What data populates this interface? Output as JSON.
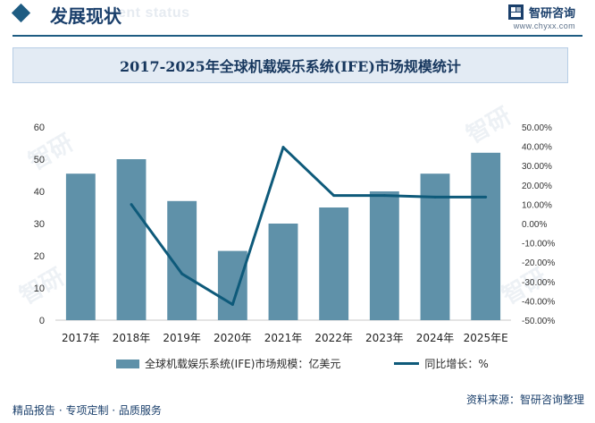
{
  "header": {
    "section_title": "发展现状",
    "section_ghost": "ent status",
    "brand_name": "智研咨询",
    "brand_url": "www.chyxx.com"
  },
  "chart_data": {
    "type": "bar+line",
    "title": "2017-2025年全球机载娱乐系统(IFE)市场规模统计",
    "categories": [
      "2017年",
      "2018年",
      "2019年",
      "2020年",
      "2021年",
      "2022年",
      "2023年",
      "2024年",
      "2025年E"
    ],
    "bar_series": {
      "name": "全球机载娱乐系统(IFE)市场规模：亿美元",
      "color": "#5f91a9",
      "values": [
        45.5,
        50,
        37,
        21.5,
        30,
        35,
        40,
        45.5,
        52
      ]
    },
    "line_series": {
      "name": "同比增长：%",
      "color": "#0e5a7a",
      "values": [
        null,
        9.9,
        -26,
        -41.9,
        39.5,
        14.5,
        14.5,
        13.7,
        13.7
      ]
    },
    "y_left": {
      "min": 0,
      "max": 60,
      "ticks": [
        "0",
        "10",
        "20",
        "30",
        "40",
        "50",
        "60"
      ]
    },
    "y_right": {
      "min": -50,
      "max": 50,
      "ticks": [
        "-50.00%",
        "-40.00%",
        "-30.00%",
        "-20.00%",
        "-10.00%",
        "0.00%",
        "10.00%",
        "20.00%",
        "30.00%",
        "40.00%",
        "50.00%"
      ]
    }
  },
  "footer": {
    "left": "精品报告 · 专项定制 · 品质服务",
    "right": "资料来源：智研咨询整理"
  }
}
